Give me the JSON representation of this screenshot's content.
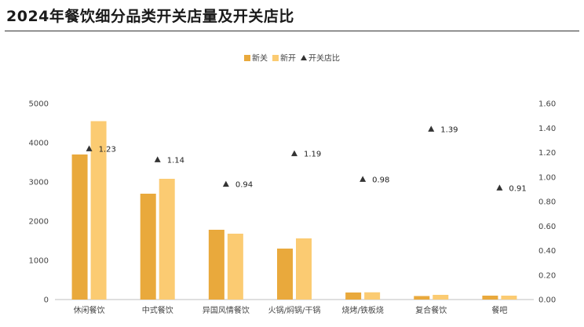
{
  "title": "2024年餐饮细分品类开关店量及开关店比",
  "chart_data": {
    "type": "bar",
    "categories": [
      "休闲餐饮",
      "中式餐饮",
      "异国风情餐饮",
      "火锅/焖锅/干锅",
      "烧烤/铁板烧",
      "复合餐饮",
      "餐吧"
    ],
    "series": [
      {
        "name": "新关",
        "type": "bar",
        "axis": "left",
        "color": "#E9A93C",
        "values": [
          3700,
          2700,
          1780,
          1300,
          180,
          90,
          100
        ]
      },
      {
        "name": "新开",
        "type": "bar",
        "axis": "left",
        "color": "#FBCB72",
        "values": [
          4550,
          3080,
          1680,
          1560,
          185,
          120,
          100
        ]
      },
      {
        "name": "开关店比",
        "type": "scatter",
        "axis": "right",
        "marker": "triangle",
        "color": "#333333",
        "values": [
          1.23,
          1.14,
          0.94,
          1.19,
          0.98,
          1.39,
          0.91
        ],
        "labels": [
          "1.23",
          "1.14",
          "0.94",
          "1.19",
          "0.98",
          "1.39",
          "0.91"
        ]
      }
    ],
    "ylim_left": [
      0,
      5000
    ],
    "yticks_left": [
      "0",
      "1000",
      "2000",
      "3000",
      "4000",
      "5000"
    ],
    "ylim_right": [
      0,
      1.6
    ],
    "yticks_right": [
      "0.00",
      "0.20",
      "0.40",
      "0.60",
      "0.80",
      "1.00",
      "1.20",
      "1.40",
      "1.60"
    ],
    "legend_position": "top-center",
    "grid": false
  }
}
